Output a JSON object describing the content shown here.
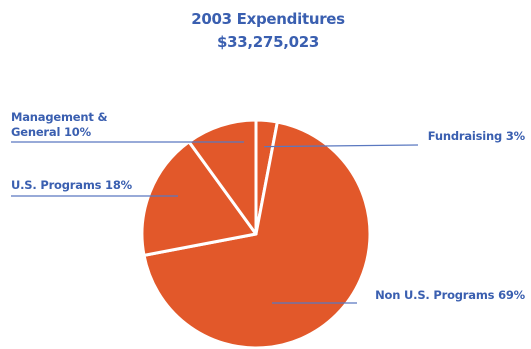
{
  "chart_data": {
    "type": "pie",
    "title": "2003 Expenditures",
    "subtitle": "$33,275,023",
    "slices": [
      {
        "name": "Fundraising",
        "value": 3,
        "label": "Fundraising 3%"
      },
      {
        "name": "Non U.S. Programs",
        "value": 69,
        "label": "Non U.S. Programs 69%"
      },
      {
        "name": "U.S. Programs",
        "value": 18,
        "label": "U.S. Programs 18%"
      },
      {
        "name": "Management & General",
        "value": 10,
        "label_lines": [
          "Management &",
          "General 10%"
        ]
      }
    ],
    "colors": {
      "slice": "#e2582a",
      "separator": "#ffffff",
      "text": "#3a5fb0",
      "leader": "#5a78c0"
    }
  }
}
